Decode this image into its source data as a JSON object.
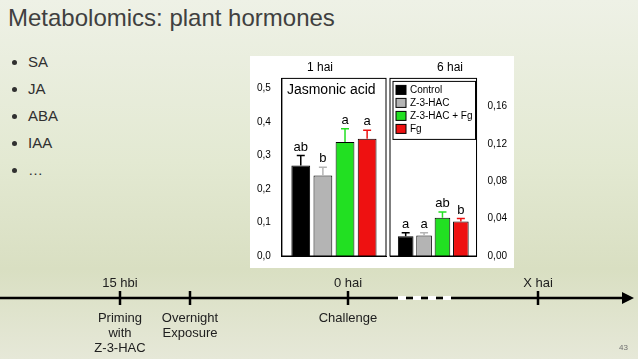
{
  "slide": {
    "title": "Metabolomics: plant hormones",
    "bullets": [
      "SA",
      "JA",
      "ABA",
      "IAA",
      "…"
    ],
    "timeline": [
      {
        "label": "15 hbi",
        "caption": [
          "Priming",
          "with",
          "Z-3-HAC"
        ]
      },
      {
        "caption": [
          "Overnight",
          "Exposure"
        ]
      },
      {
        "label": "0 hai",
        "caption": [
          "Challenge"
        ]
      },
      {
        "label": "X hai"
      }
    ],
    "page_number": "43"
  },
  "chart_data": [
    {
      "type": "bar",
      "title": "1 hai",
      "annotation": "Jasmonic acid",
      "ylim": [
        0,
        0.53
      ],
      "yticks": [
        {
          "value": 0,
          "label": "0,0"
        },
        {
          "value": 0.1,
          "label": "0,1"
        },
        {
          "value": 0.2,
          "label": "0,2"
        },
        {
          "value": 0.3,
          "label": "0,3"
        },
        {
          "value": 0.4,
          "label": "0,4"
        },
        {
          "value": 0.5,
          "label": "0,5"
        }
      ],
      "grid": false,
      "tick_labels": "y",
      "series": [
        {
          "name": "Control",
          "color": "#000000",
          "values": [
            0.27
          ],
          "errors": [
            0.03
          ],
          "significance": [
            "ab"
          ]
        },
        {
          "name": "Z-3-HAC",
          "color": "#b4b4b4",
          "values": [
            0.24
          ],
          "errors": [
            0.025
          ],
          "significance": [
            "b"
          ]
        },
        {
          "name": "Z-3-HAC + Fg",
          "color": "#22e022",
          "values": [
            0.34
          ],
          "errors": [
            0.04
          ],
          "significance": [
            "a"
          ]
        },
        {
          "name": "Fg",
          "color": "#ee1111",
          "values": [
            0.35
          ],
          "errors": [
            0.025
          ],
          "significance": [
            "a"
          ]
        }
      ]
    },
    {
      "type": "bar",
      "title": "6 hai",
      "ylim": [
        0,
        0.19
      ],
      "yticks": [
        {
          "value": 0,
          "label": "0,00"
        },
        {
          "value": 0.04,
          "label": "0,04"
        },
        {
          "value": 0.08,
          "label": "0,08"
        },
        {
          "value": 0.12,
          "label": "0,12"
        },
        {
          "value": 0.16,
          "label": "0,16"
        }
      ],
      "grid": false,
      "tick_labels": "y",
      "legend": "upper left",
      "series": [
        {
          "name": "Control",
          "color": "#000000",
          "values": [
            0.021
          ],
          "errors": [
            0.004
          ],
          "significance": [
            "a"
          ]
        },
        {
          "name": "Z-3-HAC",
          "color": "#b4b4b4",
          "values": [
            0.022
          ],
          "errors": [
            0.003
          ],
          "significance": [
            "a"
          ]
        },
        {
          "name": "Z-3-HAC + Fg",
          "color": "#22e022",
          "values": [
            0.041
          ],
          "errors": [
            0.006
          ],
          "significance": [
            "ab"
          ]
        },
        {
          "name": "Fg",
          "color": "#ee1111",
          "values": [
            0.037
          ],
          "errors": [
            0.003
          ],
          "significance": [
            "b"
          ]
        }
      ]
    }
  ]
}
